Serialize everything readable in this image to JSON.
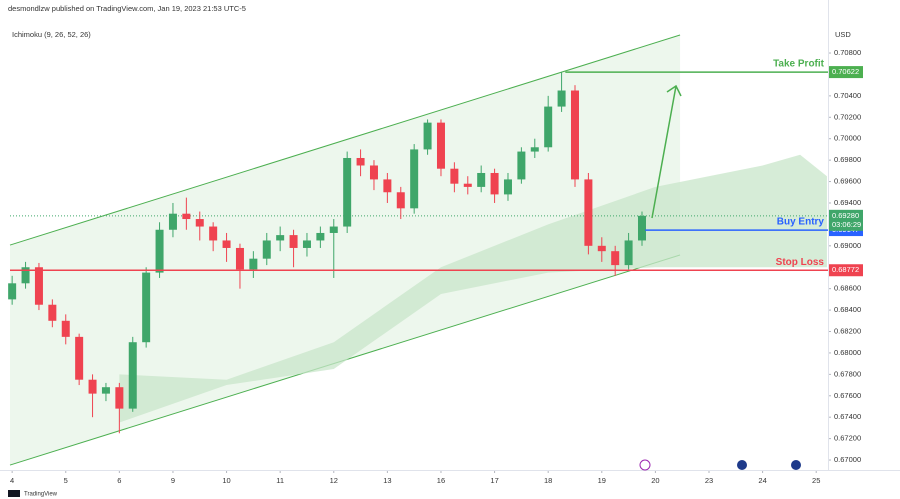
{
  "chart_data": {
    "type": "candlestick",
    "header": "desmondlzw published on TradingView.com, Jan 19, 2023 21:53 UTC-5",
    "indicator": "Ichimoku (9, 26, 52, 26)",
    "unit": "USD",
    "brand": "TradingView",
    "up_color": "#3fa66a",
    "down_color": "#ef4350",
    "x": [
      0,
      0.25,
      0.5,
      0.75,
      1,
      1.25,
      1.5,
      1.75,
      2,
      2.25,
      2.5,
      2.75,
      3,
      3.25,
      3.5,
      3.75,
      4,
      4.25,
      4.5,
      4.75,
      5,
      5.25,
      5.5,
      5.75,
      6,
      6.25,
      6.5,
      6.75,
      7,
      7.25,
      7.5,
      7.75,
      8,
      8.25,
      8.5,
      8.75,
      9,
      9.25,
      9.5,
      9.75,
      10,
      10.25,
      10.5,
      10.75,
      11,
      11.25,
      11.5,
      11.75
    ],
    "open": [
      0.685,
      0.6865,
      0.688,
      0.6845,
      0.683,
      0.6815,
      0.6775,
      0.6762,
      0.6768,
      0.6748,
      0.681,
      0.6875,
      0.6915,
      0.693,
      0.6925,
      0.6918,
      0.6905,
      0.6898,
      0.6878,
      0.6888,
      0.6905,
      0.691,
      0.6898,
      0.6905,
      0.6912,
      0.6918,
      0.6982,
      0.6975,
      0.6962,
      0.695,
      0.6935,
      0.699,
      0.7015,
      0.6972,
      0.6958,
      0.6955,
      0.6968,
      0.6948,
      0.6962,
      0.6988,
      0.6992,
      0.703,
      0.7045,
      0.6962,
      0.69,
      0.6895,
      0.6882,
      0.6905
    ],
    "high": [
      0.6872,
      0.6885,
      0.6884,
      0.685,
      0.6836,
      0.6818,
      0.678,
      0.6772,
      0.6772,
      0.6815,
      0.688,
      0.6922,
      0.694,
      0.6945,
      0.6932,
      0.6922,
      0.6912,
      0.6902,
      0.6895,
      0.6912,
      0.6918,
      0.6915,
      0.6912,
      0.6918,
      0.6925,
      0.6988,
      0.699,
      0.698,
      0.6968,
      0.6955,
      0.6995,
      0.7018,
      0.7018,
      0.6978,
      0.6965,
      0.6975,
      0.6972,
      0.6968,
      0.6992,
      0.7,
      0.704,
      0.7062,
      0.705,
      0.6968,
      0.6908,
      0.69,
      0.6912,
      0.6932
    ],
    "low": [
      0.6845,
      0.686,
      0.684,
      0.6824,
      0.6808,
      0.677,
      0.674,
      0.6755,
      0.6725,
      0.6745,
      0.6805,
      0.687,
      0.6908,
      0.6915,
      0.6905,
      0.6895,
      0.6885,
      0.686,
      0.687,
      0.6882,
      0.6895,
      0.688,
      0.689,
      0.6898,
      0.687,
      0.6912,
      0.6965,
      0.6952,
      0.694,
      0.6925,
      0.693,
      0.6985,
      0.6965,
      0.695,
      0.6948,
      0.695,
      0.694,
      0.6942,
      0.6958,
      0.6982,
      0.6988,
      0.7025,
      0.6955,
      0.6892,
      0.6885,
      0.6872,
      0.6878,
      0.69
    ],
    "close": [
      0.6865,
      0.688,
      0.6845,
      0.683,
      0.6815,
      0.6775,
      0.6762,
      0.6768,
      0.6748,
      0.681,
      0.6875,
      0.6915,
      0.693,
      0.6925,
      0.6918,
      0.6905,
      0.6898,
      0.6878,
      0.6888,
      0.6905,
      0.691,
      0.6898,
      0.6905,
      0.6912,
      0.6918,
      0.6982,
      0.6975,
      0.6962,
      0.695,
      0.6935,
      0.699,
      0.7015,
      0.6972,
      0.6958,
      0.6955,
      0.6968,
      0.6948,
      0.6962,
      0.6988,
      0.6992,
      0.703,
      0.7045,
      0.6962,
      0.69,
      0.6895,
      0.6882,
      0.6905,
      0.6928
    ],
    "cloud": {
      "color": "#c8e6c9",
      "x": [
        2,
        4,
        6,
        8,
        10,
        12,
        14,
        14.7,
        15.2
      ],
      "upper": [
        0.678,
        0.6775,
        0.681,
        0.688,
        0.692,
        0.6955,
        0.6975,
        0.6985,
        0.6965
      ],
      "lower": [
        0.6735,
        0.677,
        0.6785,
        0.6855,
        0.6875,
        0.688,
        0.688,
        0.688,
        0.688
      ]
    },
    "channel": {
      "color": "#4caf50",
      "x": [
        -0.04,
        12.46
      ],
      "upper": [
        0.69007,
        0.70968
      ],
      "lower": [
        0.66953,
        0.68914
      ]
    },
    "levels": [
      {
        "name": "Take Profit",
        "value": 0.70622,
        "color": "#4caf50",
        "from_x": 10.32
      },
      {
        "name": "Buy Entry",
        "value": 0.69147,
        "color": "#2962ff",
        "from_x": 11.81
      },
      {
        "name": "Stop Loss",
        "value": 0.68772,
        "color": "#ef4350",
        "from_x": -0.04
      }
    ],
    "last_price": {
      "value": 0.6928,
      "label": "0.69280",
      "countdown": "03:06:29",
      "color": "#3fa66a"
    },
    "xlim": [
      -0.04,
      15.22
    ],
    "ylim": [
      0.66907,
      0.71295
    ],
    "xticks": [
      {
        "value": 0,
        "label": "4"
      },
      {
        "value": 1,
        "label": "5"
      },
      {
        "value": 2,
        "label": "6"
      },
      {
        "value": 3,
        "label": "9"
      },
      {
        "value": 4,
        "label": "10"
      },
      {
        "value": 5,
        "label": "11"
      },
      {
        "value": 6,
        "label": "12"
      },
      {
        "value": 7,
        "label": "13"
      },
      {
        "value": 8,
        "label": "16"
      },
      {
        "value": 9,
        "label": "17"
      },
      {
        "value": 10,
        "label": "18"
      },
      {
        "value": 11,
        "label": "19"
      },
      {
        "value": 12,
        "label": "20"
      },
      {
        "value": 13,
        "label": "23"
      },
      {
        "value": 14,
        "label": "24"
      },
      {
        "value": 15,
        "label": "25"
      }
    ],
    "yticks": [
      {
        "value": 0.708,
        "label": "0.70800"
      },
      {
        "value": 0.704,
        "label": "0.70400"
      },
      {
        "value": 0.702,
        "label": "0.70200"
      },
      {
        "value": 0.7,
        "label": "0.70000"
      },
      {
        "value": 0.698,
        "label": "0.69800"
      },
      {
        "value": 0.696,
        "label": "0.69600"
      },
      {
        "value": 0.694,
        "label": "0.69400"
      },
      {
        "value": 0.69,
        "label": "0.69000"
      },
      {
        "value": 0.686,
        "label": "0.68600"
      },
      {
        "value": 0.684,
        "label": "0.68400"
      },
      {
        "value": 0.682,
        "label": "0.68200"
      },
      {
        "value": 0.68,
        "label": "0.68000"
      },
      {
        "value": 0.678,
        "label": "0.67800"
      },
      {
        "value": 0.676,
        "label": "0.67600"
      },
      {
        "value": 0.674,
        "label": "0.67400"
      },
      {
        "value": 0.672,
        "label": "0.67200"
      },
      {
        "value": 0.67,
        "label": "0.67000"
      }
    ]
  }
}
